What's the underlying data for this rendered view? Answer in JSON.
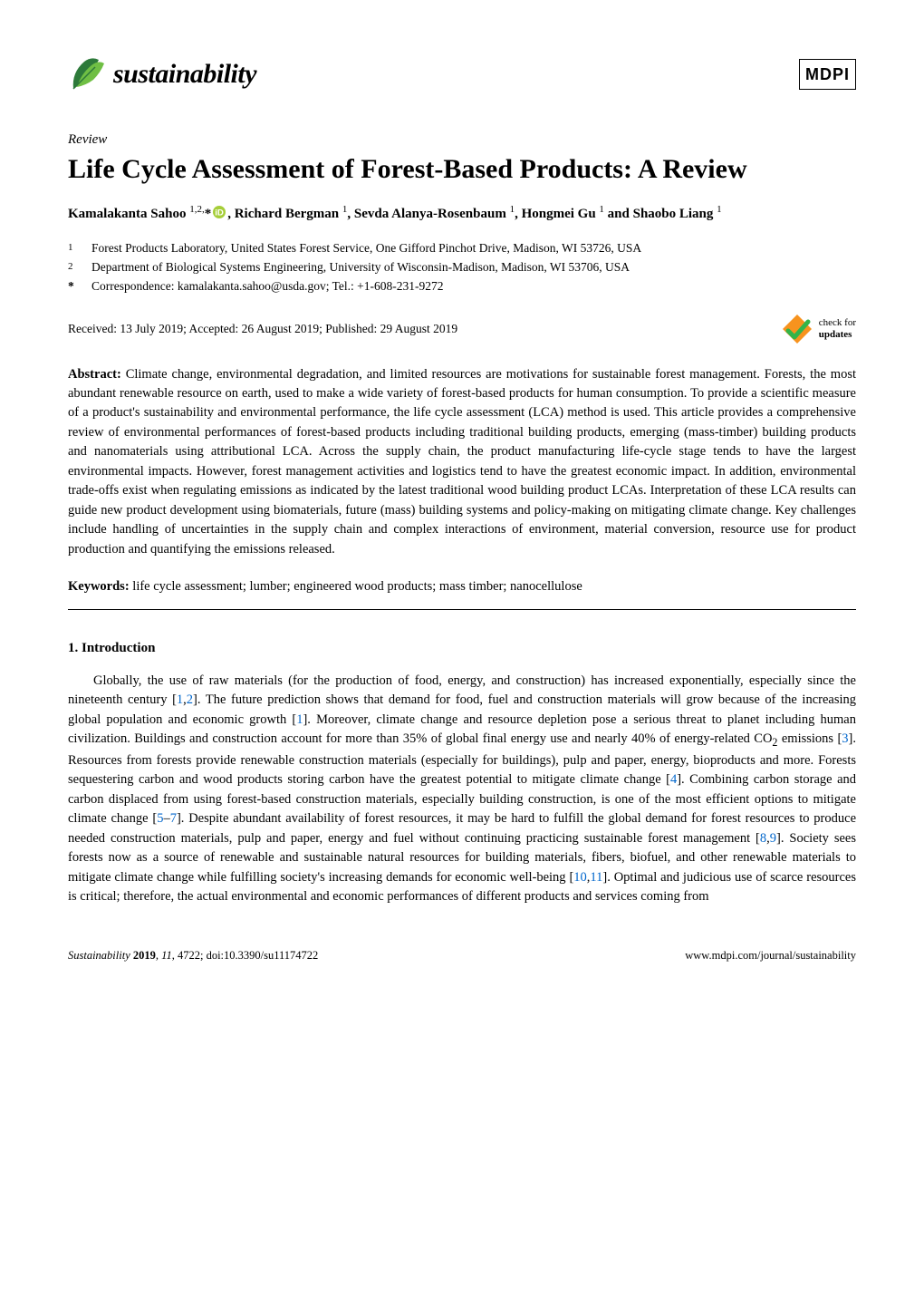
{
  "header": {
    "journal_name": "sustainability",
    "publisher": "MDPI",
    "leaf_color_dark": "#2d7a3a",
    "leaf_color_light": "#6fbf44"
  },
  "article": {
    "type": "Review",
    "title": "Life Cycle Assessment of Forest-Based Products: A Review",
    "authors_html": "Kamalakanta Sahoo <sup>1,2,</sup>* , Richard Bergman <sup>1</sup>, Sevda Alanya-Rosenbaum <sup>1</sup>, Hongmei Gu <sup>1</sup> and Shaobo Liang <sup>1</sup>",
    "authors": [
      {
        "name": "Kamalakanta Sahoo",
        "marks": "1,2,*",
        "orcid": true
      },
      {
        "name": "Richard Bergman",
        "marks": "1"
      },
      {
        "name": "Sevda Alanya-Rosenbaum",
        "marks": "1"
      },
      {
        "name": "Hongmei Gu",
        "marks": "1"
      },
      {
        "name": "Shaobo Liang",
        "marks": "1"
      }
    ],
    "affiliations": [
      {
        "num": "1",
        "text": "Forest Products Laboratory, United States Forest Service, One Gifford Pinchot Drive, Madison, WI 53726, USA"
      },
      {
        "num": "2",
        "text": "Department of Biological Systems Engineering, University of Wisconsin-Madison, Madison, WI 53706, USA"
      }
    ],
    "correspondence": {
      "mark": "*",
      "text": "Correspondence: kamalakanta.sahoo@usda.gov; Tel.: +1-608-231-9272"
    },
    "received": "Received: 13 July 2019; Accepted: 26 August 2019; Published: 29 August 2019",
    "check_updates_label1": "check for",
    "check_updates_label2": "updates",
    "check_arrow_color": "#33b44a",
    "check_bg_color": "#f7931e",
    "abstract_label": "Abstract:",
    "abstract": "Climate change, environmental degradation, and limited resources are motivations for sustainable forest management. Forests, the most abundant renewable resource on earth, used to make a wide variety of forest-based products for human consumption. To provide a scientific measure of a product's sustainability and environmental performance, the life cycle assessment (LCA) method is used. This article provides a comprehensive review of environmental performances of forest-based products including traditional building products, emerging (mass-timber) building products and nanomaterials using attributional LCA. Across the supply chain, the product manufacturing life-cycle stage tends to have the largest environmental impacts. However, forest management activities and logistics tend to have the greatest economic impact. In addition, environmental trade-offs exist when regulating emissions as indicated by the latest traditional wood building product LCAs. Interpretation of these LCA results can guide new product development using biomaterials, future (mass) building systems and policy-making on mitigating climate change. Key challenges include handling of uncertainties in the supply chain and complex interactions of environment, material conversion, resource use for product production and quantifying the emissions released.",
    "keywords_label": "Keywords:",
    "keywords": "life cycle assessment; lumber; engineered wood products; mass timber; nanocellulose",
    "section1_heading": "1. Introduction",
    "body_pre": "Globally, the use of raw materials (for the production of food, energy, and construction) has increased exponentially, especially since the nineteenth century [",
    "body_full": "Globally, the use of raw materials (for the production of food, energy, and construction) has increased exponentially, especially since the nineteenth century [1,2]. The future prediction shows that demand for food, fuel and construction materials will grow because of the increasing global population and economic growth [1]. Moreover, climate change and resource depletion pose a serious threat to planet including human civilization. Buildings and construction account for more than 35% of global final energy use and nearly 40% of energy-related CO₂ emissions [3]. Resources from forests provide renewable construction materials (especially for buildings), pulp and paper, energy, bioproducts and more. Forests sequestering carbon and wood products storing carbon have the greatest potential to mitigate climate change [4]. Combining carbon storage and carbon displaced from using forest-based construction materials, especially building construction, is one of the most efficient options to mitigate climate change [5–7]. Despite abundant availability of forest resources, it may be hard to fulfill the global demand for forest resources to produce needed construction materials, pulp and paper, energy and fuel without continuing practicing sustainable forest management [8,9]. Society sees forests now as a source of renewable and sustainable natural resources for building materials, fibers, biofuel, and other renewable materials to mitigate climate change while fulfilling society's increasing demands for economic well-being [10,11]. Optimal and judicious use of scarce resources is critical; therefore, the actual environmental and economic performances of different products and services coming from",
    "citations": [
      "1",
      "2",
      "1",
      "3",
      "4",
      "5",
      "7",
      "8",
      "9",
      "10",
      "11"
    ],
    "cite_color": "#0066cc"
  },
  "footer": {
    "left_journal": "Sustainability",
    "left_year_vol": "2019, 11, 4722;",
    "left_doi": "doi:10.3390/su11174722",
    "right_url": "www.mdpi.com/journal/sustainability"
  },
  "colors": {
    "text": "#000000",
    "background": "#ffffff",
    "link": "#0066cc",
    "orcid": "#a6ce39"
  },
  "typography": {
    "body_fontsize_pt": 11,
    "title_fontsize_pt": 22,
    "journal_name_fontsize_pt": 22,
    "authors_fontsize_pt": 11,
    "footer_fontsize_pt": 9
  }
}
